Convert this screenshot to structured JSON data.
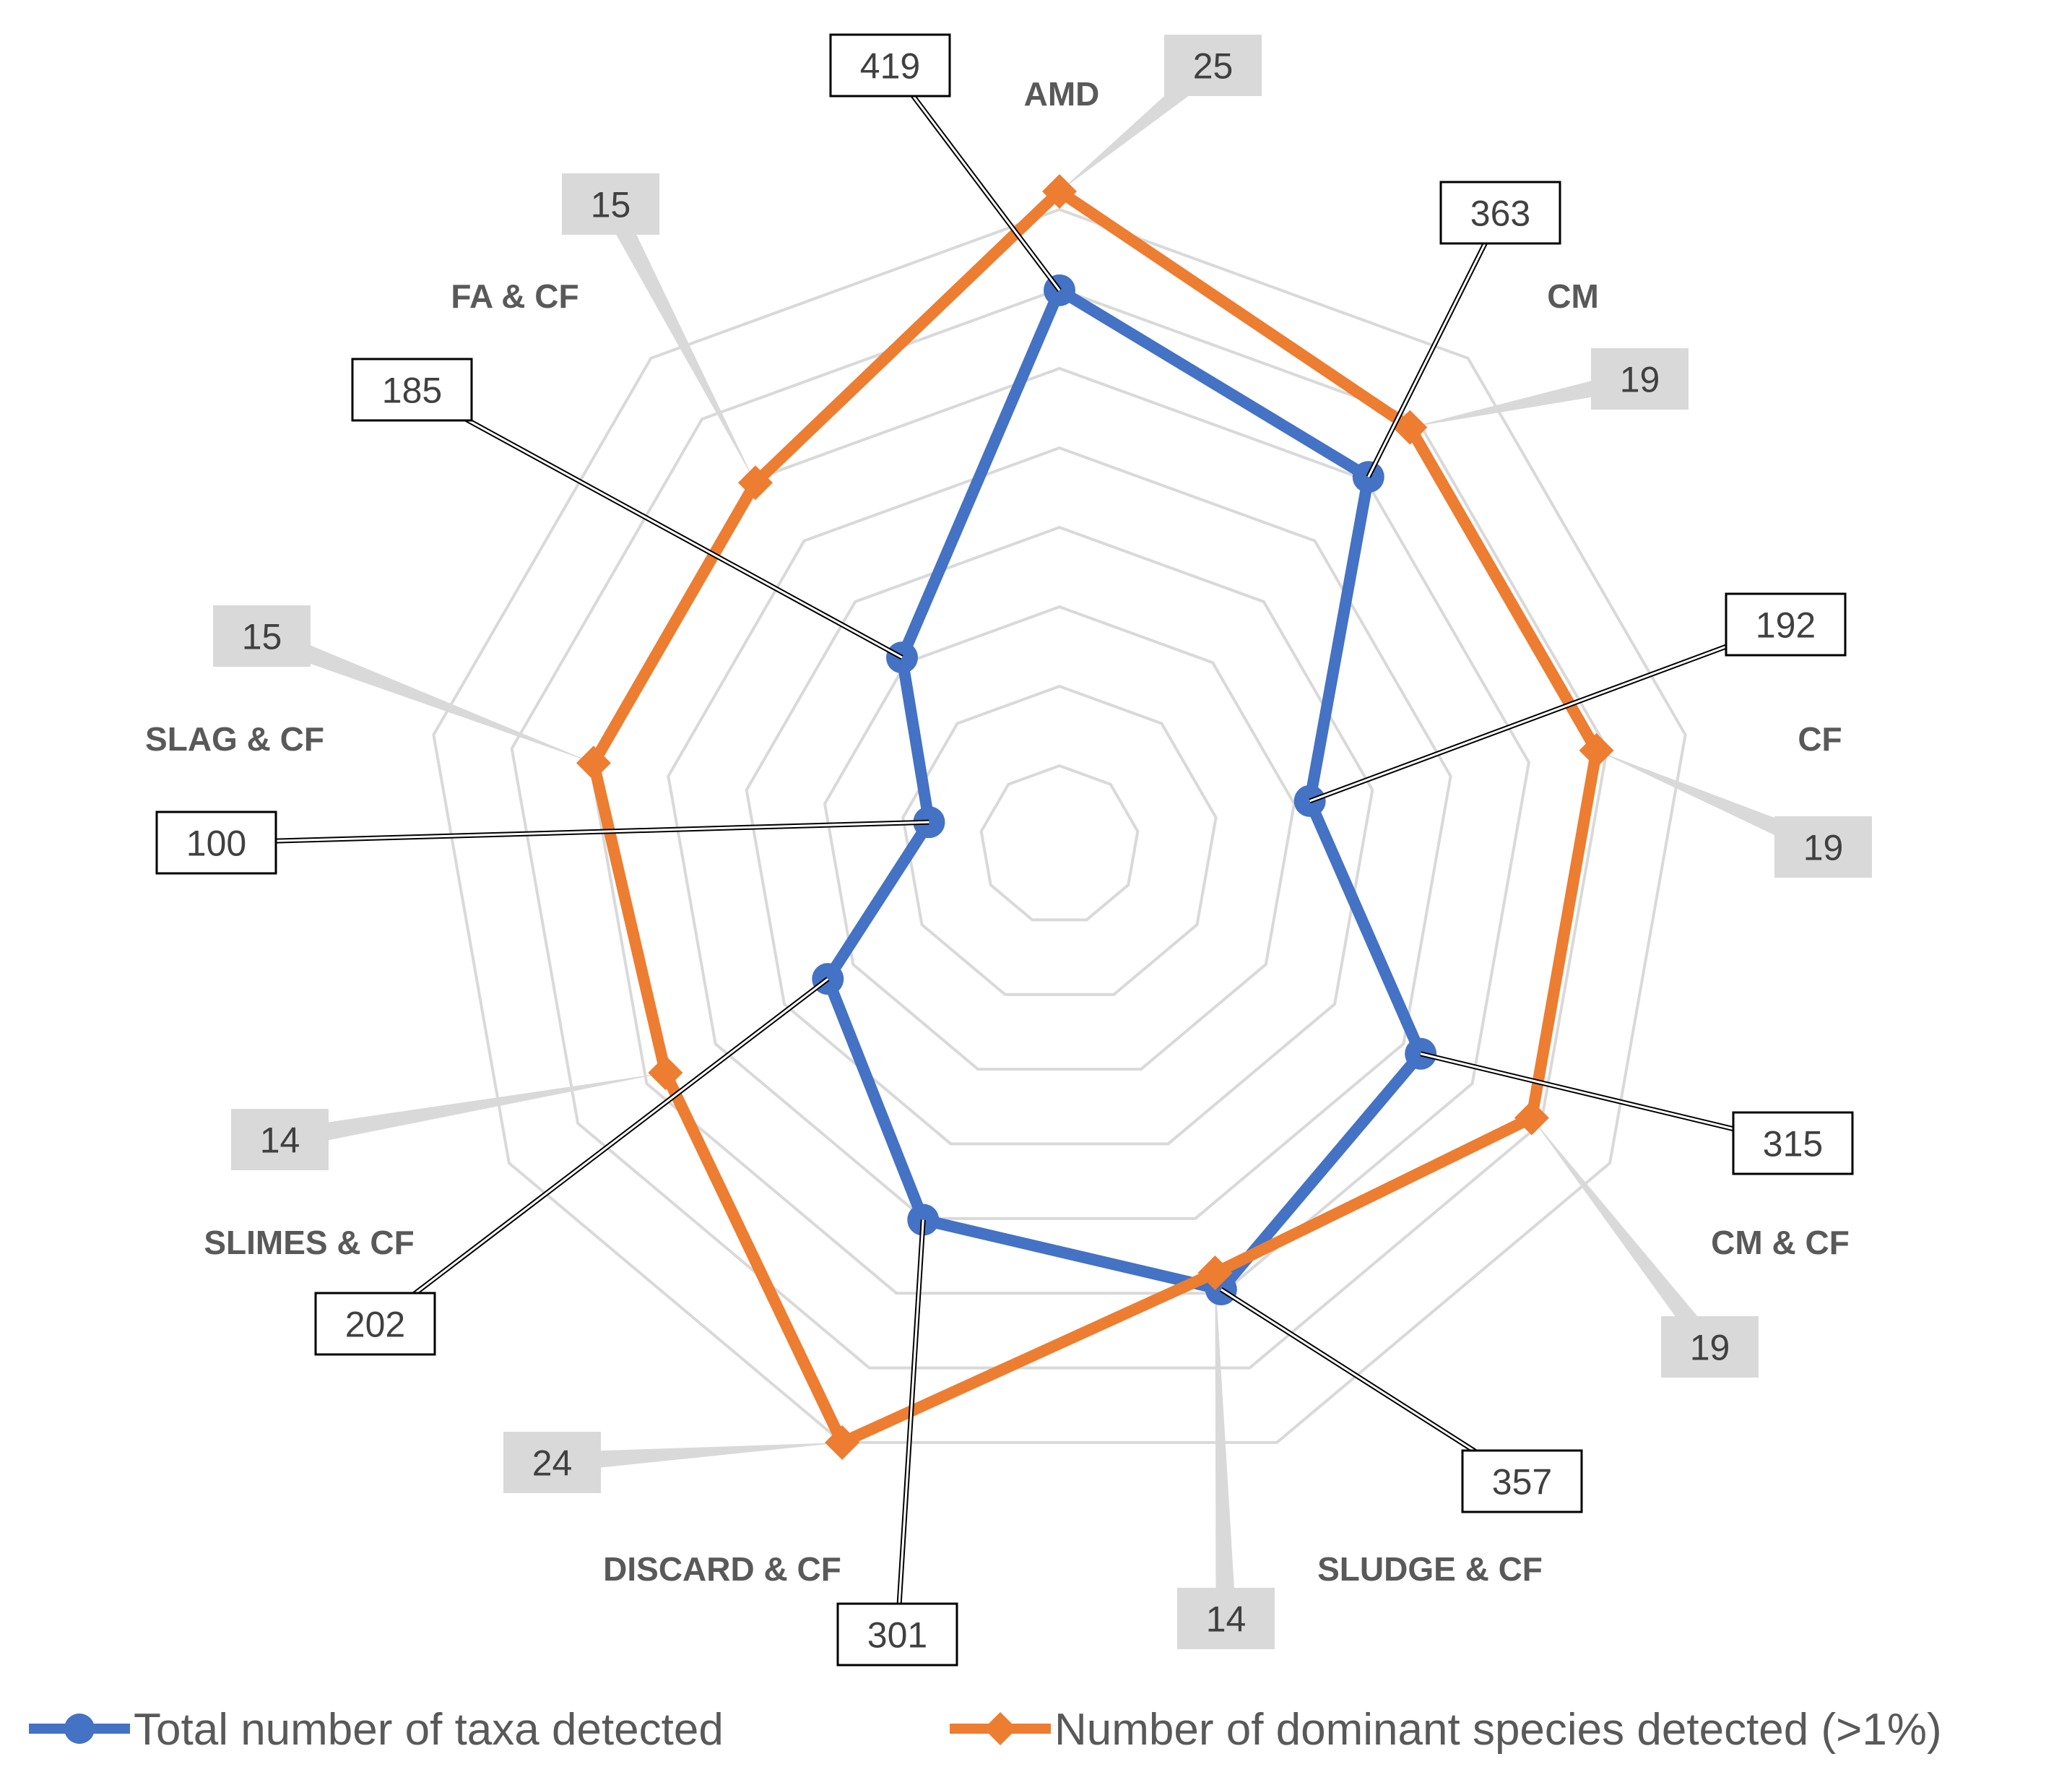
{
  "chart_data": {
    "type": "radar",
    "title": "",
    "categories": [
      "AMD",
      "CM",
      "CF",
      "CM & CF",
      "SLUDGE & CF",
      "DISCARD & CF",
      "SLIMES & CF",
      "SLAG & CF",
      "FA & CF"
    ],
    "series": [
      {
        "name": "Total number of taxa detected",
        "color": "#4472C4",
        "marker": "circle",
        "values": [
          419,
          363,
          192,
          315,
          357,
          301,
          202,
          100,
          185
        ]
      },
      {
        "name": "Number of dominant species detected (>1%)",
        "color": "#ED7D31",
        "marker": "diamond",
        "values": [
          25,
          19,
          19,
          19,
          14,
          24,
          14,
          15,
          15
        ]
      }
    ],
    "rings": 8,
    "grid": true,
    "gridline_color": "#D9D9D9",
    "legend": "bottom",
    "callout_style": {
      "total": "white box with black border and leader line",
      "dominant": "grey box with grey leader"
    }
  }
}
